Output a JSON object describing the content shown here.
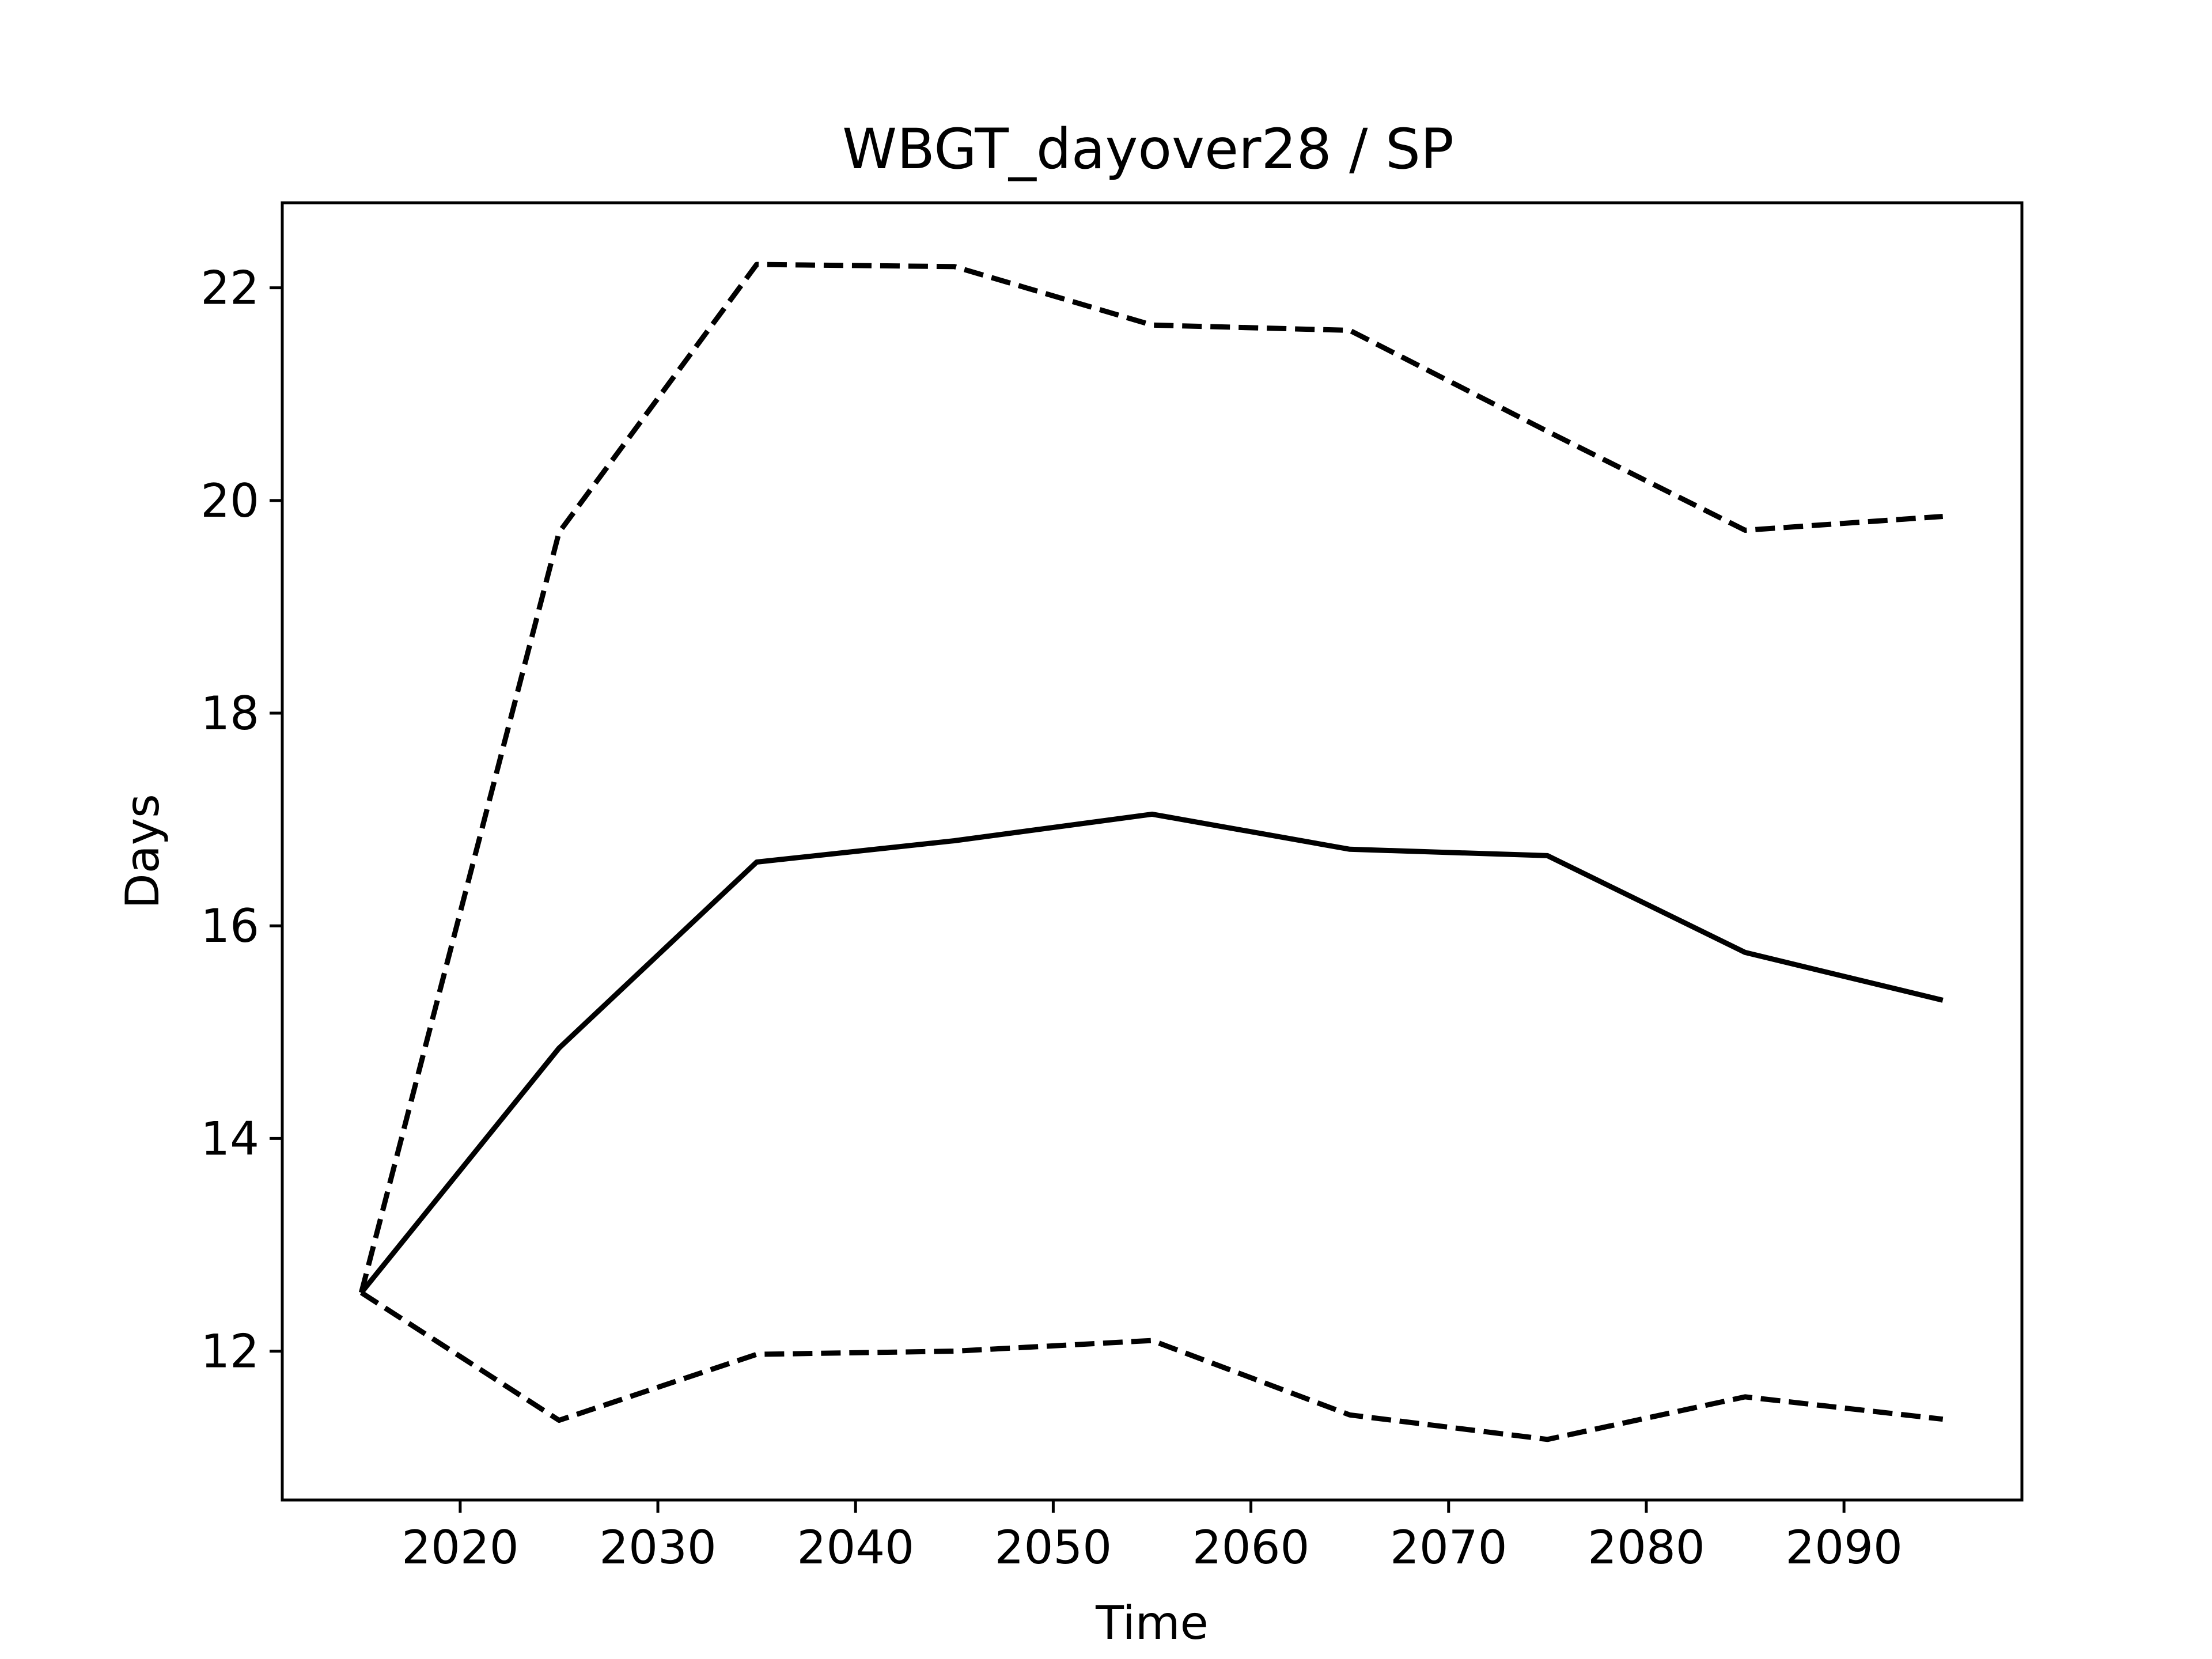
{
  "chart_data": {
    "type": "line",
    "title": "WBGT_dayover28 / SP",
    "xlabel": "Time",
    "ylabel": "Days",
    "xlim": [
      2011,
      2099
    ],
    "ylim": [
      10.6,
      22.8
    ],
    "xticks": [
      2020,
      2030,
      2040,
      2050,
      2060,
      2070,
      2080,
      2090
    ],
    "yticks": [
      12,
      14,
      16,
      18,
      20,
      22
    ],
    "grid": false,
    "legend": "none",
    "x": [
      2015,
      2025,
      2035,
      2045,
      2055,
      2065,
      2075,
      2085,
      2095
    ],
    "series": [
      {
        "style": "solid",
        "color": "#000000",
        "values": [
          12.55,
          14.85,
          16.6,
          16.8,
          17.05,
          16.72,
          16.66,
          15.75,
          15.3
        ]
      },
      {
        "style": "dashed",
        "color": "#000000",
        "values": [
          12.55,
          19.7,
          22.22,
          22.2,
          21.65,
          21.6,
          20.65,
          19.72,
          19.85
        ]
      },
      {
        "style": "dashed",
        "color": "#000000",
        "values": [
          12.55,
          11.35,
          11.97,
          12.0,
          12.1,
          11.4,
          11.17,
          11.57,
          11.36
        ]
      }
    ]
  }
}
